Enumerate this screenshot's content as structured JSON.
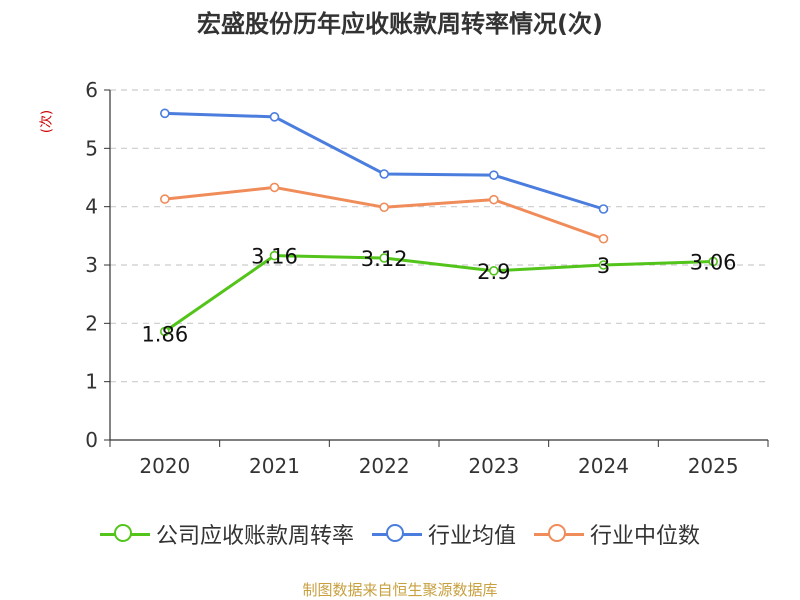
{
  "chart_data": {
    "type": "line",
    "title": "宏盛股份历年应收账款周转率情况(次)",
    "ylabel": "(次)",
    "xlabel": "",
    "categories": [
      "2020",
      "2021",
      "2022",
      "2023",
      "2024",
      "2025"
    ],
    "yticks": [
      "0",
      "1",
      "2",
      "3",
      "4",
      "5",
      "6"
    ],
    "ylim": [
      0,
      6
    ],
    "grid": true,
    "legend_position": "bottom",
    "series": [
      {
        "name": "公司应收账款周转率",
        "color": "#52c41a",
        "values": [
          1.86,
          3.16,
          3.12,
          2.9,
          3,
          3.06
        ],
        "labels": [
          "1.86",
          "3.16",
          "3.12",
          "2.9",
          "3",
          "3.06"
        ]
      },
      {
        "name": "行业均值",
        "color": "#4a7ddd",
        "values": [
          5.6,
          5.54,
          4.56,
          4.54,
          3.96,
          null
        ],
        "labels": []
      },
      {
        "name": "行业中位数",
        "color": "#f08c5a",
        "values": [
          4.13,
          4.33,
          3.99,
          4.12,
          3.45,
          null
        ],
        "labels": []
      }
    ]
  },
  "footer": "制图数据来自恒生聚源数据库"
}
